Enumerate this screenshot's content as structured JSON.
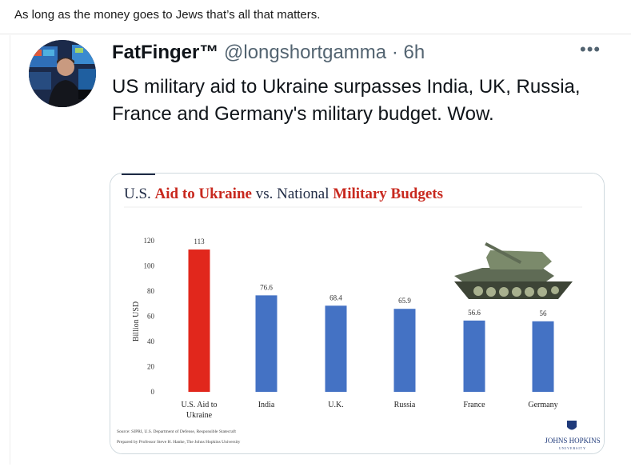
{
  "comment": {
    "text": "As long as the money goes to Jews that’s all that matters."
  },
  "tweet": {
    "display_name": "FatFinger™",
    "handle": "@longshortgamma",
    "separator": "·",
    "time": "6h",
    "more_label": "•••",
    "text": "US military aid to Ukraine surpasses  India, UK, Russia, France and Germany's military budget. Wow."
  },
  "chart_data": {
    "type": "bar",
    "title_part1": "U.S. ",
    "title_part2": "Aid to Ukraine",
    "title_part3": " vs. National ",
    "title_part4": "Military Budgets",
    "ylabel": "Billion USD",
    "ylim": [
      0,
      120
    ],
    "yticks": [
      "120",
      "100",
      "80",
      "60",
      "40",
      "20",
      "0"
    ],
    "categories": [
      "U.S. Aid to Ukraine",
      "India",
      "U.K.",
      "Russia",
      "France",
      "Germany"
    ],
    "category_lines": [
      [
        "U.S. Aid to",
        "Ukraine"
      ],
      [
        "India"
      ],
      [
        "U.K."
      ],
      [
        "Russia"
      ],
      [
        "France"
      ],
      [
        "Germany"
      ]
    ],
    "values": [
      113,
      76.6,
      68.4,
      65.9,
      56.6,
      56
    ],
    "value_labels": [
      "113",
      "76.6",
      "68.4",
      "65.9",
      "56.6",
      "56"
    ],
    "bar_colors": [
      "#e1271c",
      "#4472c4",
      "#4472c4",
      "#4472c4",
      "#4472c4",
      "#4472c4"
    ],
    "source_line1": "Source: SIPRI, U.S. Department of Defense, Responsible Statecraft",
    "source_line2": "Prepared by Professor Steve H. Hanke, The Johns Hopkins University",
    "logo_text": "JOHNS HOPKINS",
    "logo_sub": "UNIVERSITY",
    "title_color_dark": "#1f2a44",
    "title_color_red": "#c8281e"
  }
}
